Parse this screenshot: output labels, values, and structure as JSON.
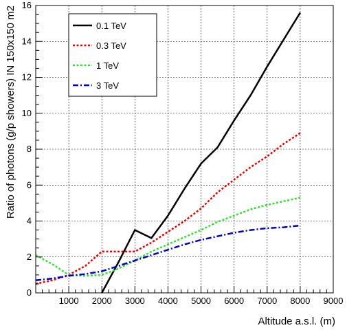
{
  "chart_data": {
    "type": "line",
    "title": "",
    "xlabel": "Altitude a.s.l. (m)",
    "ylabel": "Ratio of photons (g/p showers) IN 150x150 m2",
    "xlim": [
      0,
      9000
    ],
    "ylim": [
      0,
      16
    ],
    "x_ticks": [
      1000,
      2000,
      3000,
      4000,
      5000,
      6000,
      7000,
      8000,
      9000
    ],
    "y_ticks": [
      0,
      2,
      4,
      6,
      8,
      10,
      12,
      14,
      16
    ],
    "grid": true,
    "legend_position": "top-left",
    "series": [
      {
        "name": "0.1 TeV",
        "color": "#000000",
        "style": "solid",
        "x": [
          2000,
          2500,
          3000,
          3500,
          4000,
          4500,
          5000,
          5500,
          6000,
          6500,
          7000,
          7500,
          8000
        ],
        "y": [
          0.0,
          1.7,
          3.5,
          3.05,
          4.3,
          5.8,
          7.2,
          8.1,
          9.6,
          11.0,
          12.6,
          14.1,
          15.6
        ]
      },
      {
        "name": "0.3 TeV",
        "color": "#e00000",
        "style": "dotted",
        "x": [
          0,
          500,
          1000,
          1500,
          2000,
          2500,
          3000,
          3500,
          4000,
          4500,
          5000,
          5500,
          6000,
          6500,
          7000,
          7500,
          8000
        ],
        "y": [
          0.5,
          0.7,
          1.0,
          1.5,
          2.3,
          2.3,
          2.3,
          2.8,
          3.4,
          4.0,
          4.7,
          5.6,
          6.3,
          7.0,
          7.6,
          8.3,
          8.9
        ]
      },
      {
        "name": "1 TeV",
        "color": "#33dd33",
        "style": "dotted",
        "x": [
          0,
          500,
          1000,
          1500,
          2000,
          2500,
          3000,
          3500,
          4000,
          4500,
          5000,
          5500,
          6000,
          6500,
          7000,
          7500,
          8000
        ],
        "y": [
          2.1,
          1.6,
          1.0,
          0.95,
          1.0,
          1.35,
          1.8,
          2.3,
          2.7,
          3.1,
          3.5,
          3.95,
          4.3,
          4.65,
          4.9,
          5.1,
          5.3
        ]
      },
      {
        "name": "3 TeV",
        "color": "#0000bb",
        "style": "dashdot",
        "x": [
          0,
          500,
          1000,
          1500,
          2000,
          2500,
          3000,
          3500,
          4000,
          4500,
          5000,
          5500,
          6000,
          6500,
          7000,
          7500,
          8000
        ],
        "y": [
          0.7,
          0.8,
          0.95,
          1.05,
          1.2,
          1.5,
          1.8,
          2.1,
          2.4,
          2.7,
          2.95,
          3.15,
          3.35,
          3.5,
          3.6,
          3.65,
          3.75
        ]
      }
    ]
  }
}
